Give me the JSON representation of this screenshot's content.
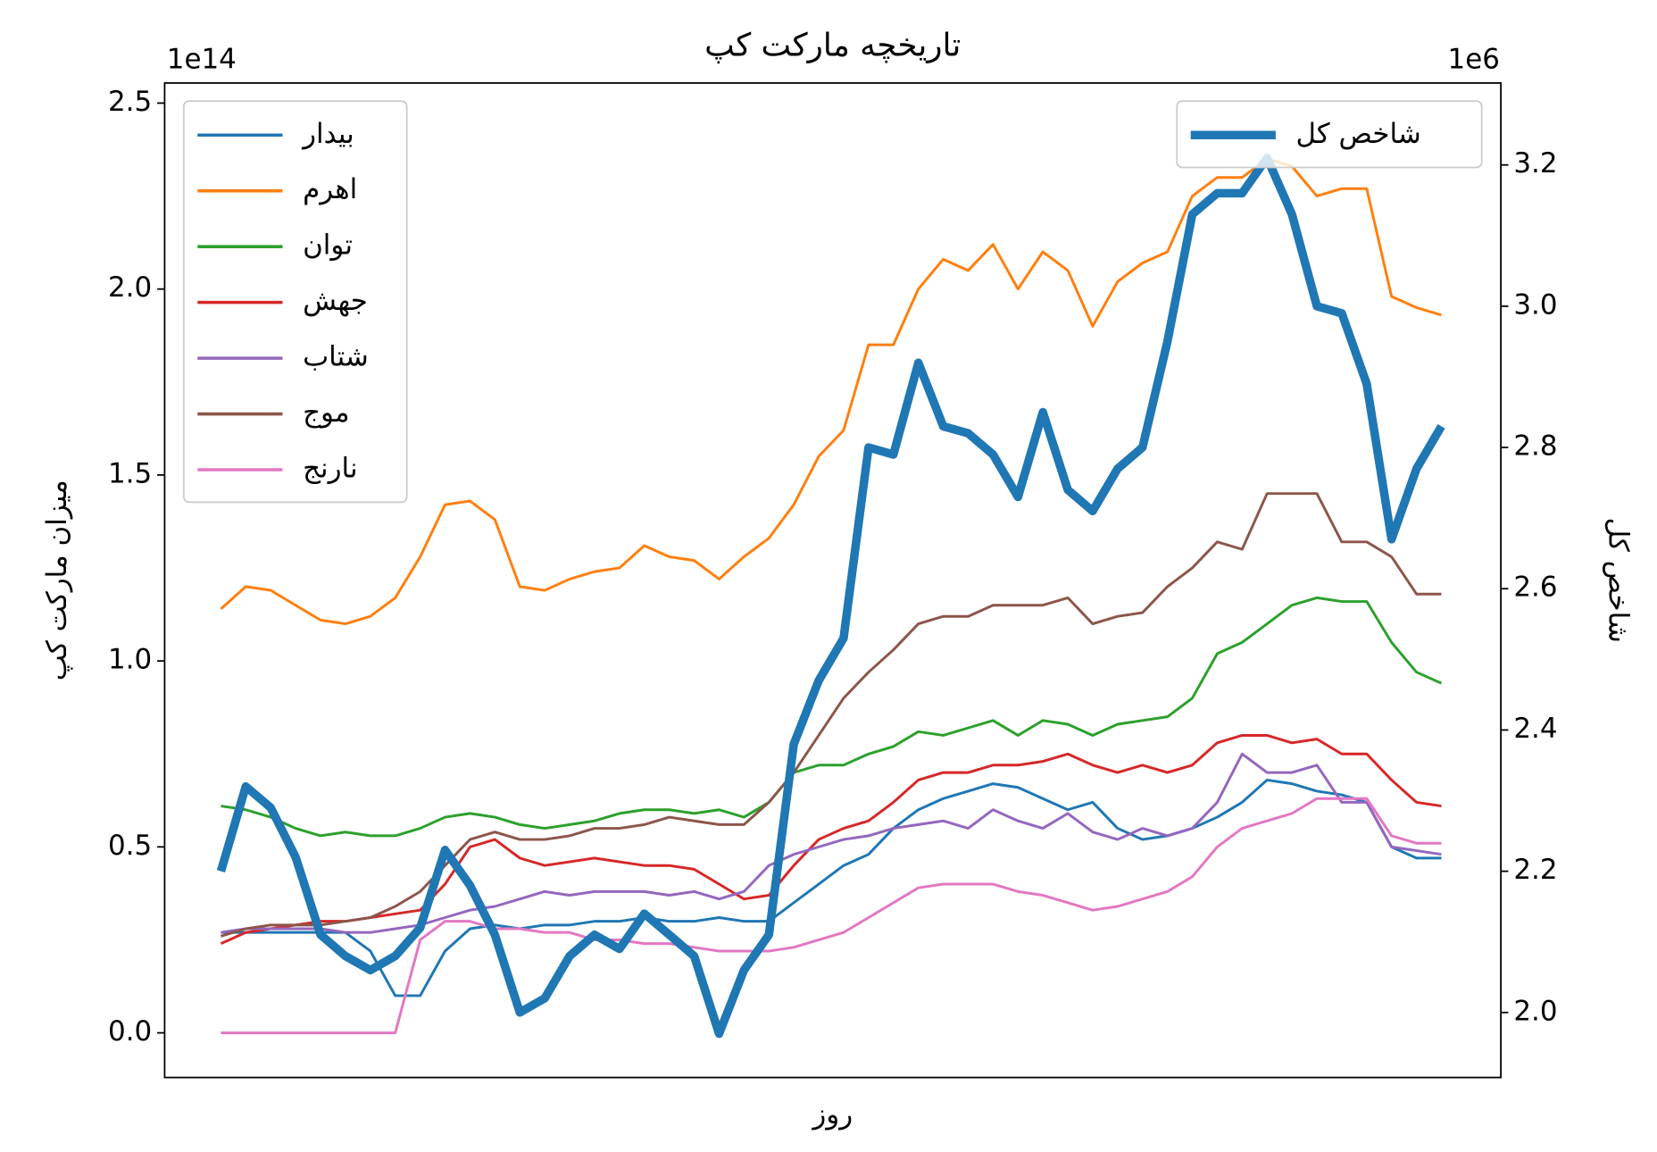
{
  "chart_data": {
    "type": "line",
    "title": "تاریخچه مارکت کپ",
    "xlabel": "روز",
    "ylabel": "میزان مارکت کپ",
    "y2label": "شاخص کل",
    "y_offset_text": "1e14",
    "y2_offset_text": "1e6",
    "categories": [
      null,
      null,
      null,
      null,
      null,
      null,
      null,
      null,
      null,
      null,
      null,
      null,
      null,
      null,
      null,
      null,
      null,
      null,
      null,
      null,
      null,
      null,
      null,
      null,
      null,
      null,
      null,
      null,
      null,
      null,
      null,
      null,
      null,
      null,
      null,
      null,
      null,
      null,
      null,
      null,
      null,
      null,
      null,
      null,
      null,
      null,
      null,
      null,
      null,
      null
    ],
    "ylim": [
      -0.12,
      2.554
    ],
    "yticks": [
      {
        "value": 0,
        "label": "0.0"
      },
      0.5,
      {
        "value": 1,
        "label": "1.0"
      },
      1.5,
      {
        "value": 2,
        "label": "2.0"
      },
      2.5
    ],
    "y2lim": [
      1.908,
      3.316
    ],
    "y2ticks": [
      {
        "value": 2,
        "label": "2.0"
      },
      2.2,
      2.4,
      2.6,
      2.8,
      {
        "value": 3,
        "label": "3.0"
      },
      3.2
    ],
    "legend_loc": "upper left",
    "legend2_loc": "upper right",
    "series": [
      {
        "name": "بیدار",
        "color": "#1f77b4",
        "values": [
          0.27,
          0.27,
          0.27,
          0.27,
          0.27,
          0.27,
          0.22,
          0.1,
          0.1,
          0.22,
          0.28,
          0.29,
          0.28,
          0.29,
          0.29,
          0.3,
          0.3,
          0.31,
          0.3,
          0.3,
          0.31,
          0.3,
          0.3,
          0.35,
          0.4,
          0.45,
          0.48,
          0.55,
          0.6,
          0.63,
          0.65,
          0.67,
          0.66,
          0.63,
          0.6,
          0.62,
          0.55,
          0.52,
          0.53,
          0.55,
          0.58,
          0.62,
          0.68,
          0.67,
          0.65,
          0.64,
          0.62,
          0.5,
          0.47,
          0.47
        ]
      },
      {
        "name": "اهرم",
        "color": "#ff7f0e",
        "values": [
          1.14,
          1.2,
          1.19,
          1.15,
          1.11,
          1.1,
          1.12,
          1.17,
          1.28,
          1.42,
          1.43,
          1.38,
          1.2,
          1.19,
          1.22,
          1.24,
          1.25,
          1.31,
          1.28,
          1.27,
          1.22,
          1.28,
          1.33,
          1.42,
          1.55,
          1.62,
          1.85,
          1.85,
          2.0,
          2.08,
          2.05,
          2.12,
          2.0,
          2.1,
          2.05,
          1.9,
          2.02,
          2.07,
          2.1,
          2.25,
          2.3,
          2.3,
          2.35,
          2.33,
          2.25,
          2.27,
          2.27,
          1.98,
          1.95,
          1.93
        ]
      },
      {
        "name": "توان",
        "color": "#2ca02c",
        "values": [
          0.61,
          0.6,
          0.58,
          0.55,
          0.53,
          0.54,
          0.53,
          0.53,
          0.55,
          0.58,
          0.59,
          0.58,
          0.56,
          0.55,
          0.56,
          0.57,
          0.59,
          0.6,
          0.6,
          0.59,
          0.6,
          0.58,
          0.62,
          0.7,
          0.72,
          0.72,
          0.75,
          0.77,
          0.81,
          0.8,
          0.82,
          0.84,
          0.8,
          0.84,
          0.83,
          0.8,
          0.83,
          0.84,
          0.85,
          0.9,
          1.02,
          1.05,
          1.1,
          1.15,
          1.17,
          1.16,
          1.16,
          1.05,
          0.97,
          0.94
        ]
      },
      {
        "name": "جهش",
        "color": "#d62728",
        "values": [
          0.24,
          0.27,
          0.28,
          0.29,
          0.3,
          0.3,
          0.31,
          0.32,
          0.33,
          0.4,
          0.5,
          0.52,
          0.47,
          0.45,
          0.46,
          0.47,
          0.46,
          0.45,
          0.45,
          0.44,
          0.4,
          0.36,
          0.37,
          0.45,
          0.52,
          0.55,
          0.57,
          0.62,
          0.68,
          0.7,
          0.7,
          0.72,
          0.72,
          0.73,
          0.75,
          0.72,
          0.7,
          0.72,
          0.7,
          0.72,
          0.78,
          0.8,
          0.8,
          0.78,
          0.79,
          0.75,
          0.75,
          0.68,
          0.62,
          0.61
        ]
      },
      {
        "name": "شتاب",
        "color": "#9467bd",
        "values": [
          0.27,
          0.28,
          0.28,
          0.28,
          0.28,
          0.27,
          0.27,
          0.28,
          0.29,
          0.31,
          0.33,
          0.34,
          0.36,
          0.38,
          0.37,
          0.38,
          0.38,
          0.38,
          0.37,
          0.38,
          0.36,
          0.38,
          0.45,
          0.48,
          0.5,
          0.52,
          0.53,
          0.55,
          0.56,
          0.57,
          0.55,
          0.6,
          0.57,
          0.55,
          0.59,
          0.54,
          0.52,
          0.55,
          0.53,
          0.55,
          0.62,
          0.75,
          0.7,
          0.7,
          0.72,
          0.62,
          0.62,
          0.5,
          0.49,
          0.48
        ]
      },
      {
        "name": "موج",
        "color": "#8c564b",
        "values": [
          0.26,
          0.28,
          0.29,
          0.29,
          0.29,
          0.3,
          0.31,
          0.34,
          0.38,
          0.45,
          0.52,
          0.54,
          0.52,
          0.52,
          0.53,
          0.55,
          0.55,
          0.56,
          0.58,
          0.57,
          0.56,
          0.56,
          0.62,
          0.7,
          0.8,
          0.9,
          0.97,
          1.03,
          1.1,
          1.12,
          1.12,
          1.15,
          1.15,
          1.15,
          1.17,
          1.1,
          1.12,
          1.13,
          1.2,
          1.25,
          1.32,
          1.3,
          1.45,
          1.45,
          1.45,
          1.32,
          1.32,
          1.28,
          1.18,
          1.18
        ]
      },
      {
        "name": "نارنج",
        "color": "#e377c2",
        "values": [
          0,
          0,
          0,
          0,
          0,
          0,
          0,
          0,
          0.25,
          0.3,
          0.3,
          0.28,
          0.28,
          0.27,
          0.27,
          0.25,
          0.25,
          0.24,
          0.24,
          0.23,
          0.22,
          0.22,
          0.22,
          0.23,
          0.25,
          0.27,
          0.31,
          0.35,
          0.39,
          0.4,
          0.4,
          0.4,
          0.38,
          0.37,
          0.35,
          0.33,
          0.34,
          0.36,
          0.38,
          0.42,
          0.5,
          0.55,
          0.57,
          0.59,
          0.63,
          0.63,
          0.63,
          0.53,
          0.51,
          0.51
        ]
      },
      {
        "name": "شاخص کل",
        "color": "#1f77b4",
        "axis": "y2",
        "linewidth": 8,
        "values": [
          2.2,
          2.32,
          2.29,
          2.22,
          2.11,
          2.08,
          2.06,
          2.08,
          2.12,
          2.23,
          2.18,
          2.11,
          2.0,
          2.02,
          2.08,
          2.11,
          2.09,
          2.14,
          2.11,
          2.08,
          1.97,
          2.06,
          2.11,
          2.38,
          2.47,
          2.53,
          2.8,
          2.79,
          2.92,
          2.83,
          2.82,
          2.79,
          2.73,
          2.85,
          2.74,
          2.71,
          2.77,
          2.8,
          2.95,
          3.13,
          3.16,
          3.16,
          3.21,
          3.13,
          3.0,
          2.99,
          2.89,
          2.67,
          2.77,
          2.83
        ]
      }
    ]
  }
}
